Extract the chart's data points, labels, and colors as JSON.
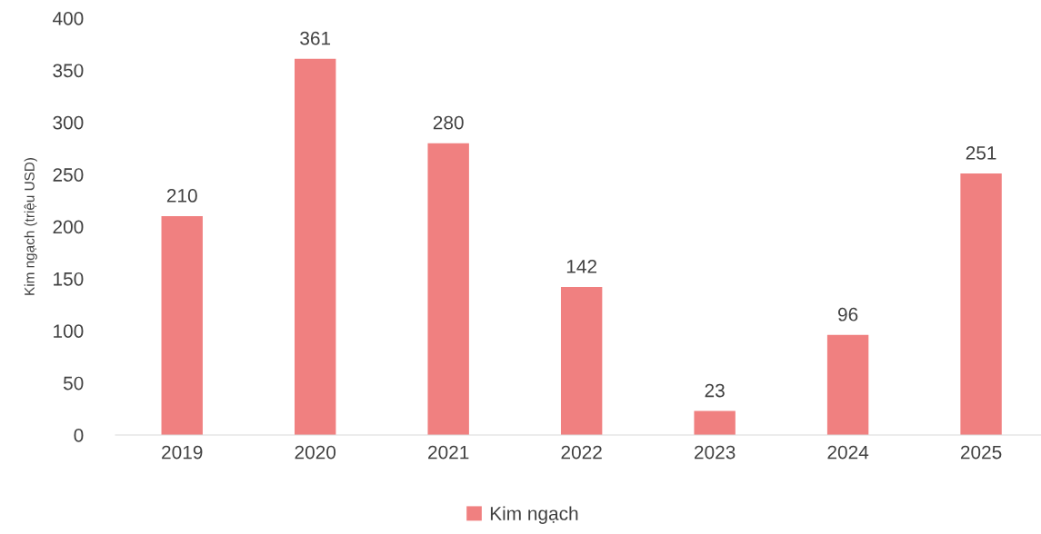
{
  "chart_data": {
    "type": "bar",
    "ylabel": "Kim ngạch (triệu USD)",
    "categories": [
      "2019",
      "2020",
      "2021",
      "2022",
      "2023",
      "2024",
      "2025"
    ],
    "series": [
      {
        "name": "Kim ngạch",
        "color": "#f08080",
        "values": [
          210,
          361,
          280,
          142,
          23,
          96,
          251
        ]
      }
    ],
    "ylim": [
      0,
      400
    ],
    "yticks": [
      0,
      50,
      100,
      150,
      200,
      250,
      300,
      350,
      400
    ],
    "data_labels": true,
    "grid": false,
    "legend": "bottom"
  }
}
